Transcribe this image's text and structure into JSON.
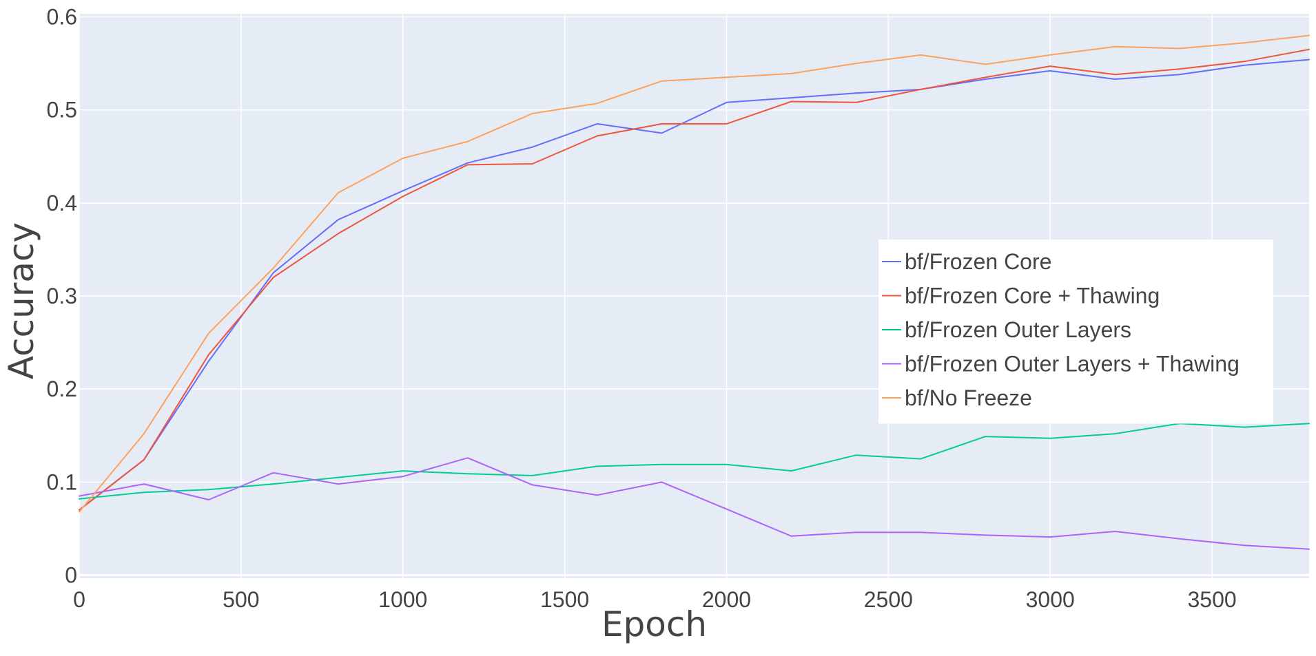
{
  "chart_data": {
    "type": "line",
    "xlabel": "Epoch",
    "ylabel": "Accuracy",
    "xlim": [
      0,
      3800
    ],
    "ylim": [
      0,
      0.6
    ],
    "x_ticks": [
      0,
      500,
      1000,
      1500,
      2000,
      2500,
      3000,
      3500
    ],
    "y_ticks": [
      0,
      0.1,
      0.2,
      0.3,
      0.4,
      0.5,
      0.6
    ],
    "y_tick_labels": [
      "0",
      "0.1",
      "0.2",
      "0.3",
      "0.4",
      "0.5",
      "0.6"
    ],
    "grid": true,
    "legend_position": "center-right",
    "plot_background": "#e5ecf6",
    "x": [
      0,
      200,
      400,
      600,
      800,
      1000,
      1200,
      1400,
      1600,
      1800,
      2000,
      2200,
      2400,
      2600,
      2800,
      3000,
      3200,
      3400,
      3600,
      3800
    ],
    "series": [
      {
        "name": "bf/Frozen Core",
        "color": "#636efa",
        "values": [
          0.07,
          0.124,
          0.23,
          0.325,
          0.382,
          0.413,
          0.443,
          0.46,
          0.485,
          0.475,
          0.508,
          0.513,
          0.518,
          0.522,
          0.533,
          0.542,
          0.533,
          0.538,
          0.548,
          0.554
        ]
      },
      {
        "name": "bf/Frozen Core + Thawing",
        "color": "#ef553b",
        "values": [
          0.07,
          0.124,
          0.237,
          0.32,
          0.367,
          0.407,
          0.441,
          0.442,
          0.472,
          0.485,
          0.485,
          0.509,
          0.508,
          0.522,
          0.535,
          0.547,
          0.538,
          0.544,
          0.552,
          0.565
        ]
      },
      {
        "name": "bf/Frozen Outer Layers",
        "color": "#00cc96",
        "values": [
          0.082,
          0.089,
          0.092,
          0.098,
          0.105,
          0.112,
          0.109,
          0.107,
          0.117,
          0.119,
          0.119,
          0.112,
          0.129,
          0.125,
          0.149,
          0.147,
          0.152,
          0.163,
          0.159,
          0.163
        ]
      },
      {
        "name": "bf/Frozen Outer Layers + Thawing",
        "color": "#ab63fa",
        "values": [
          0.085,
          0.098,
          0.081,
          0.11,
          0.098,
          0.106,
          0.126,
          0.097,
          0.086,
          0.1,
          0.071,
          0.042,
          0.046,
          0.046,
          0.043,
          0.041,
          0.047,
          0.039,
          0.032,
          0.028
        ]
      },
      {
        "name": "bf/No Freeze",
        "color": "#ffa15a",
        "values": [
          0.068,
          0.152,
          0.26,
          0.33,
          0.411,
          0.448,
          0.466,
          0.496,
          0.507,
          0.531,
          0.535,
          0.539,
          0.55,
          0.559,
          0.549,
          0.559,
          0.568,
          0.566,
          0.572,
          0.58
        ]
      }
    ]
  }
}
